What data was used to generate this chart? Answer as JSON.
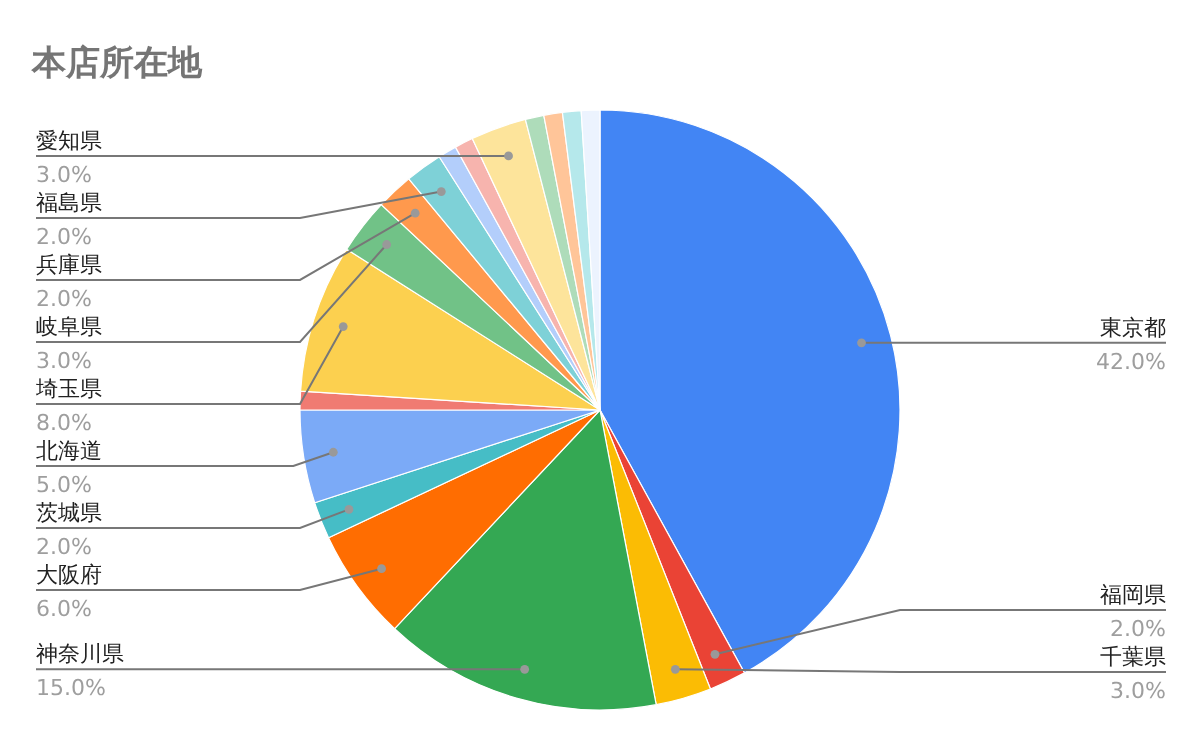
{
  "chart_data": {
    "type": "pie",
    "title": "本店所在地",
    "categories": [
      "東京都",
      "福岡県",
      "千葉県",
      "神奈川県",
      "大阪府",
      "茨城県",
      "北海道",
      null,
      "埼玉県",
      "岐阜県",
      "兵庫県",
      "福島県",
      null,
      null,
      "愛知県",
      null,
      null,
      null,
      null
    ],
    "values": [
      42,
      2,
      3,
      15,
      6,
      2,
      5,
      1,
      8,
      3,
      2,
      2,
      1,
      1,
      3,
      1,
      1,
      1,
      1
    ],
    "value_labels": [
      "42.0%",
      "2.0%",
      "3.0%",
      "15.0%",
      "6.0%",
      "2.0%",
      "5.0%",
      null,
      "8.0%",
      "3.0%",
      "2.0%",
      "2.0%",
      null,
      null,
      "3.0%",
      null,
      null,
      null,
      null
    ],
    "colors": [
      "#4285f4",
      "#ea4335",
      "#fbbc04",
      "#34a853",
      "#ff6d01",
      "#46bdc6",
      "#7baaf7",
      "#f07b72",
      "#fcd04f",
      "#71c287",
      "#ff994d",
      "#7ed1d7",
      "#b3cefb",
      "#f7b4ae",
      "#fde49b",
      "#aedcba",
      "#ffc599",
      "#b5e8eb",
      "#ecf3fe"
    ]
  }
}
